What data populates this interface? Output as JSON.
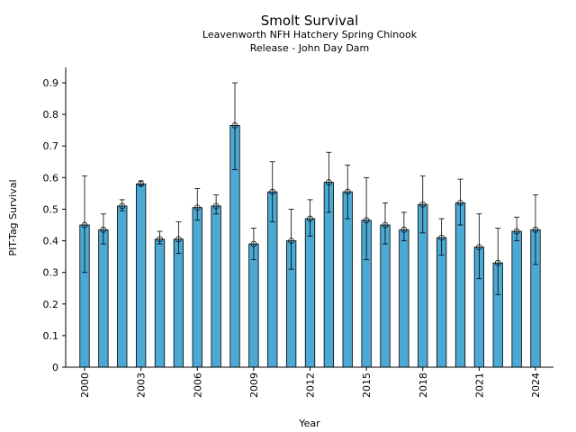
{
  "chart_data": {
    "type": "bar",
    "title": "Smolt Survival",
    "subtitle_line1": "Leavenworth NFH Hatchery Spring Chinook",
    "subtitle_line2": "Release - John Day Dam",
    "xlabel": "Year",
    "ylabel": "PIT-Tag Survival",
    "ylim": [
      0,
      0.95
    ],
    "yticks": [
      "0",
      "0.1",
      "0.2",
      "0.3",
      "0.4",
      "0.5",
      "0.6",
      "0.7",
      "0.8",
      "0.9"
    ],
    "xticks": [
      "2000",
      "2003",
      "2006",
      "2009",
      "2012",
      "2015",
      "2018",
      "2021",
      "2024"
    ],
    "categories": [
      2000,
      2001,
      2002,
      2003,
      2004,
      2005,
      2006,
      2007,
      2008,
      2009,
      2010,
      2011,
      2012,
      2013,
      2014,
      2015,
      2016,
      2017,
      2018,
      2019,
      2020,
      2021,
      2022,
      2023,
      2024
    ],
    "values": [
      0.45,
      0.435,
      0.51,
      0.58,
      0.405,
      0.405,
      0.505,
      0.51,
      0.765,
      0.39,
      0.555,
      0.4,
      0.47,
      0.585,
      0.555,
      0.465,
      0.45,
      0.435,
      0.515,
      0.41,
      0.52,
      0.38,
      0.33,
      0.43,
      0.435
    ],
    "err_low": [
      0.3,
      0.39,
      0.495,
      0.575,
      0.39,
      0.36,
      0.465,
      0.485,
      0.625,
      0.34,
      0.46,
      0.31,
      0.415,
      0.49,
      0.47,
      0.34,
      0.39,
      0.4,
      0.425,
      0.355,
      0.45,
      0.28,
      0.23,
      0.4,
      0.325
    ],
    "err_high": [
      0.605,
      0.485,
      0.53,
      0.59,
      0.43,
      0.46,
      0.565,
      0.545,
      0.9,
      0.44,
      0.65,
      0.5,
      0.53,
      0.68,
      0.64,
      0.6,
      0.52,
      0.49,
      0.605,
      0.47,
      0.595,
      0.485,
      0.44,
      0.475,
      0.545
    ],
    "bar_color": "#4ba9d4"
  }
}
